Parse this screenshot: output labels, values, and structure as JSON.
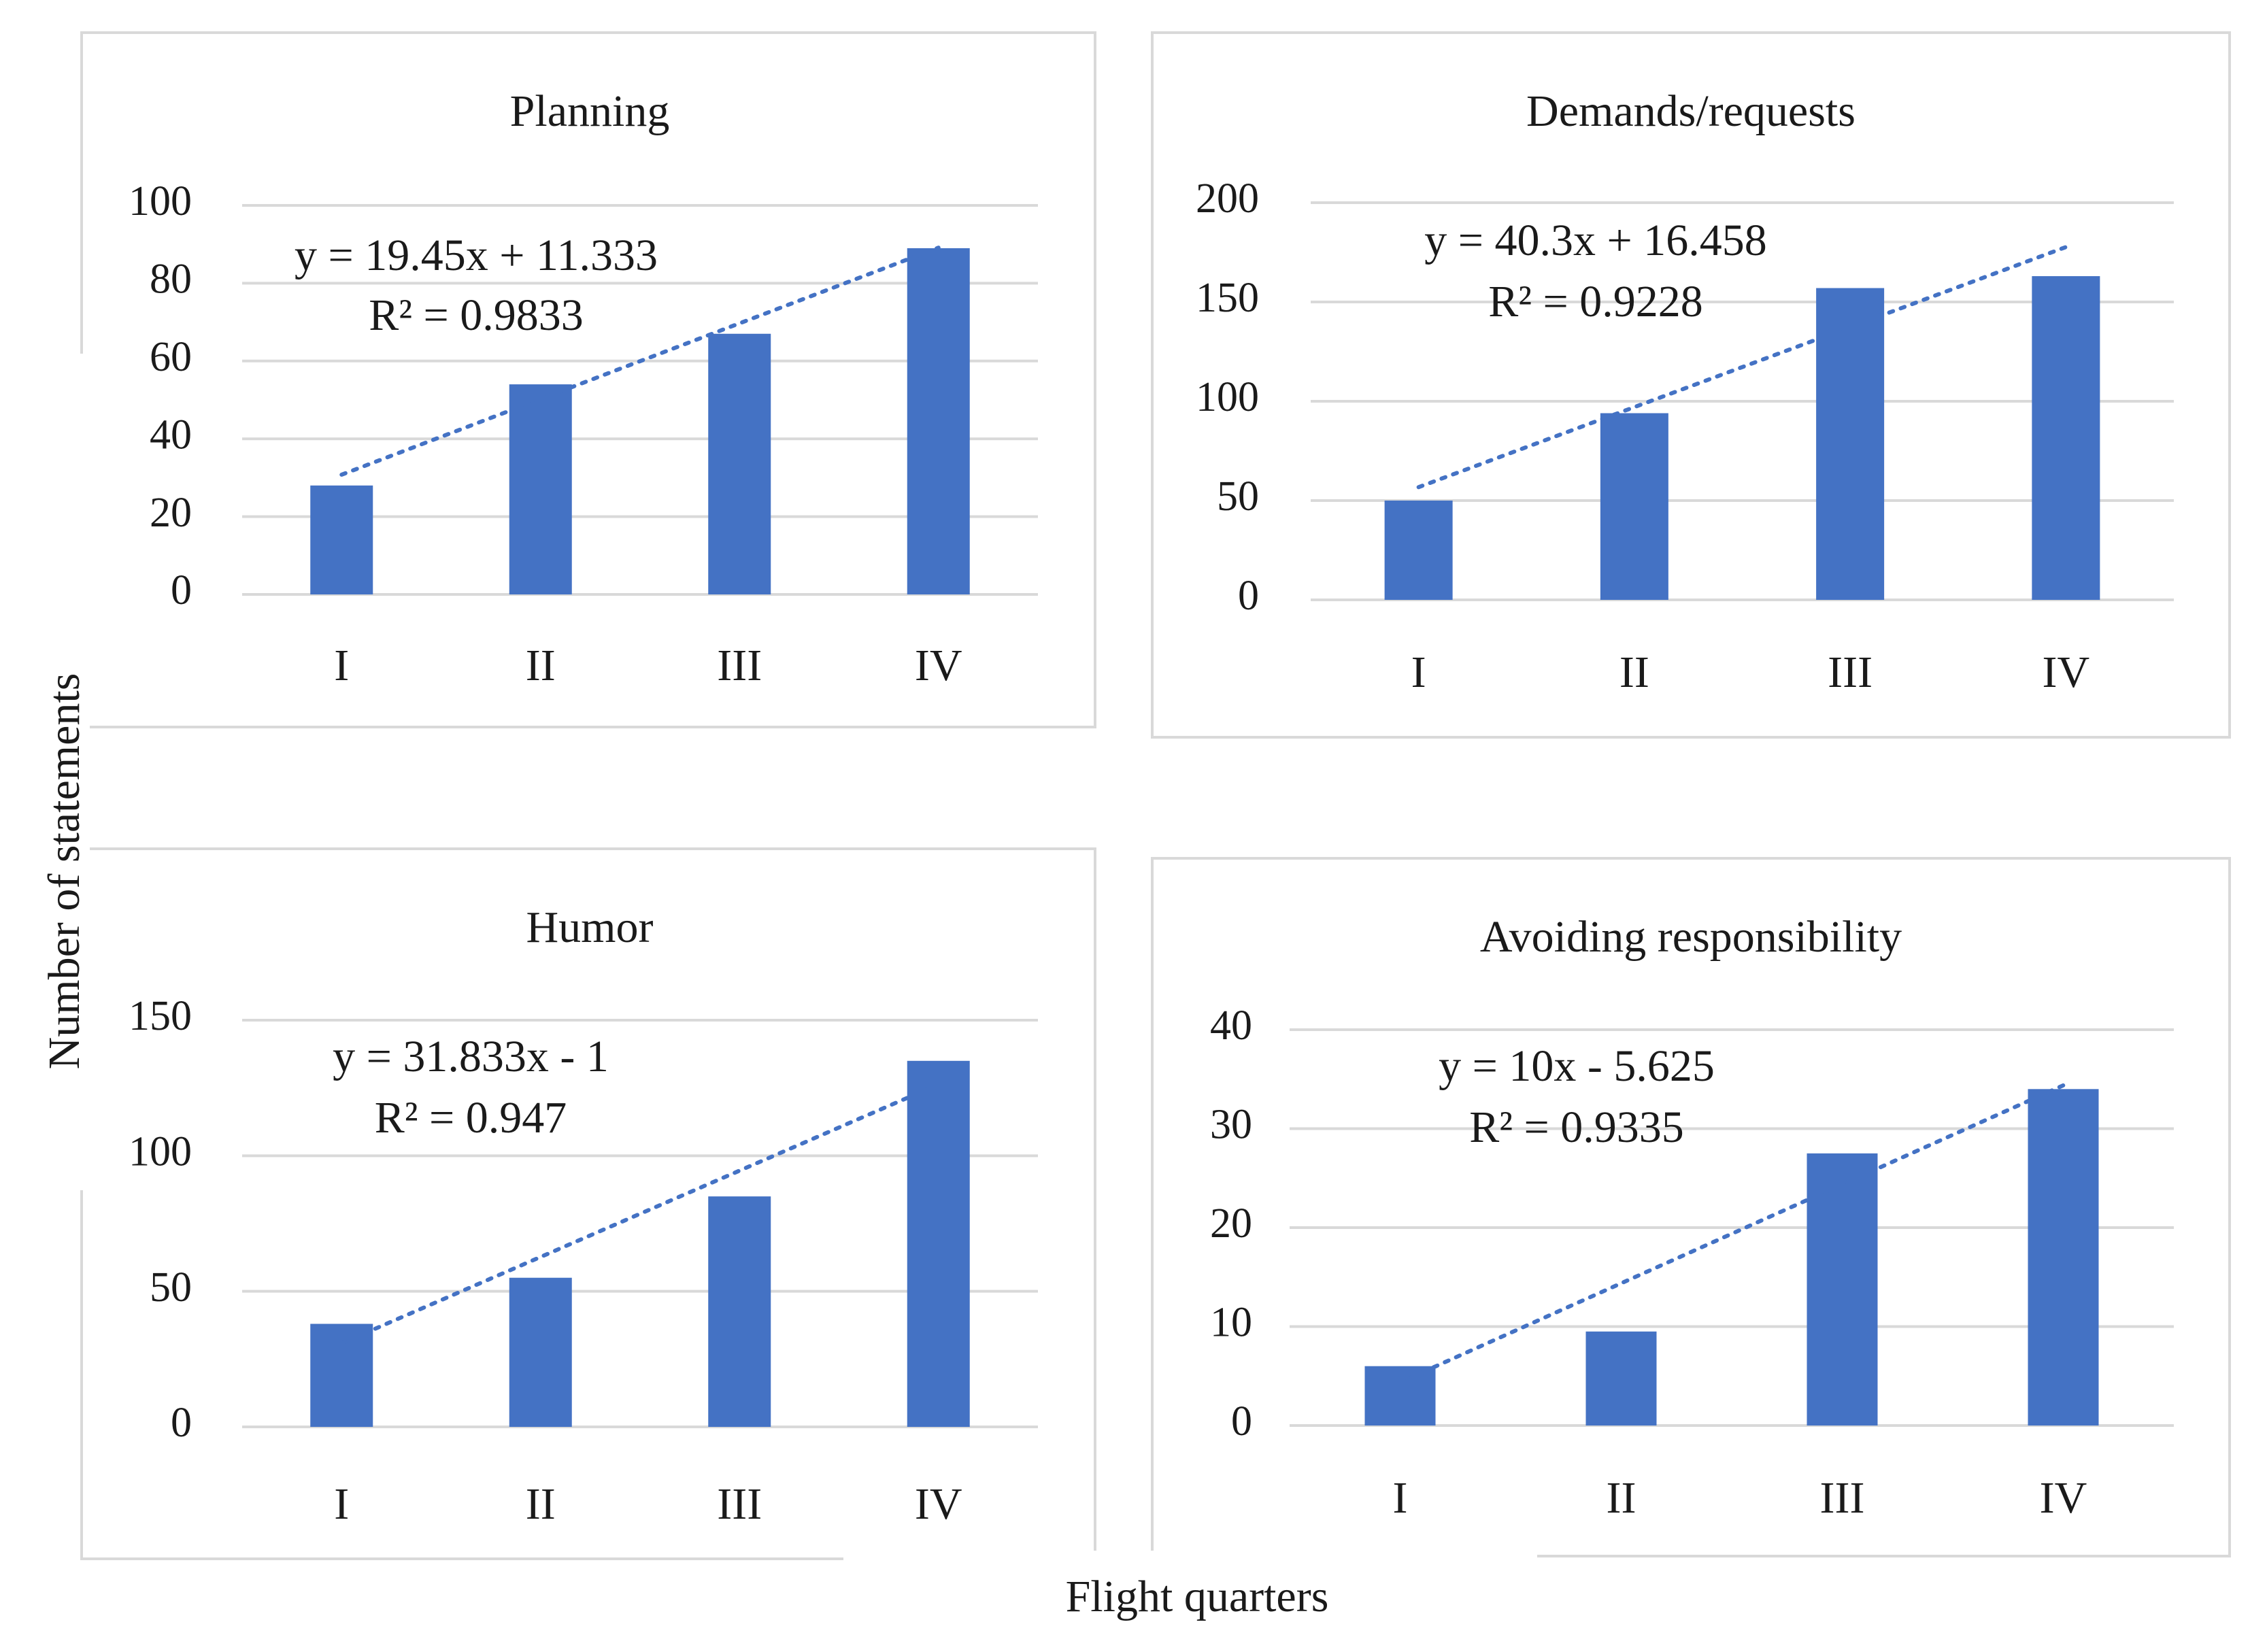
{
  "y_axis_label": "Number of statements",
  "x_axis_label": "Flight quarters",
  "colors": {
    "bar": "#4472C4",
    "trend": "#4472C4",
    "grid": "#d9d9d9",
    "border": "#d9d9d9"
  },
  "chart_data": [
    {
      "type": "bar",
      "title": "Planning",
      "categories": [
        "I",
        "II",
        "III",
        "IV"
      ],
      "values": [
        28,
        54,
        67,
        89
      ],
      "ylim": [
        0,
        100
      ],
      "yticks": [
        0,
        20,
        40,
        60,
        80,
        100
      ],
      "trendline": {
        "type": "linear",
        "slope": 19.45,
        "intercept": 11.333
      },
      "equation": "y = 19.45x + 11.333",
      "r2": "R² = 0.9833",
      "xlabel": "",
      "ylabel": "",
      "grid": true,
      "legend": "none"
    },
    {
      "type": "bar",
      "title": "Demands/requests",
      "categories": [
        "I",
        "II",
        "III",
        "IV"
      ],
      "values": [
        50,
        94,
        157,
        163
      ],
      "ylim": [
        0,
        200
      ],
      "yticks": [
        0,
        50,
        100,
        150,
        200
      ],
      "trendline": {
        "type": "linear",
        "slope": 40.3,
        "intercept": 16.458
      },
      "equation": "y = 40.3x + 16.458",
      "r2": "R² = 0.9228",
      "xlabel": "",
      "ylabel": "",
      "grid": true,
      "legend": "none"
    },
    {
      "type": "bar",
      "title": "Humor",
      "categories": [
        "I",
        "II",
        "III",
        "IV"
      ],
      "values": [
        38,
        55,
        85,
        135
      ],
      "ylim": [
        0,
        150
      ],
      "yticks": [
        0,
        50,
        100,
        150
      ],
      "trendline": {
        "type": "linear",
        "slope": 31.833,
        "intercept": -1
      },
      "equation": "y = 31.833x - 1",
      "r2": "R² = 0.947",
      "xlabel": "",
      "ylabel": "",
      "grid": true,
      "legend": "none"
    },
    {
      "type": "bar",
      "title": "Avoiding responsibility",
      "categories": [
        "I",
        "II",
        "III",
        "IV"
      ],
      "values": [
        6,
        9.5,
        27.5,
        34
      ],
      "ylim": [
        0,
        40
      ],
      "yticks": [
        0,
        10,
        20,
        30,
        40
      ],
      "trendline": {
        "type": "linear",
        "slope": 10,
        "intercept": -5.625
      },
      "equation": "y = 10x - 5.625",
      "r2": "R² = 0.9335",
      "xlabel": "",
      "ylabel": "",
      "grid": true,
      "legend": "none"
    }
  ]
}
